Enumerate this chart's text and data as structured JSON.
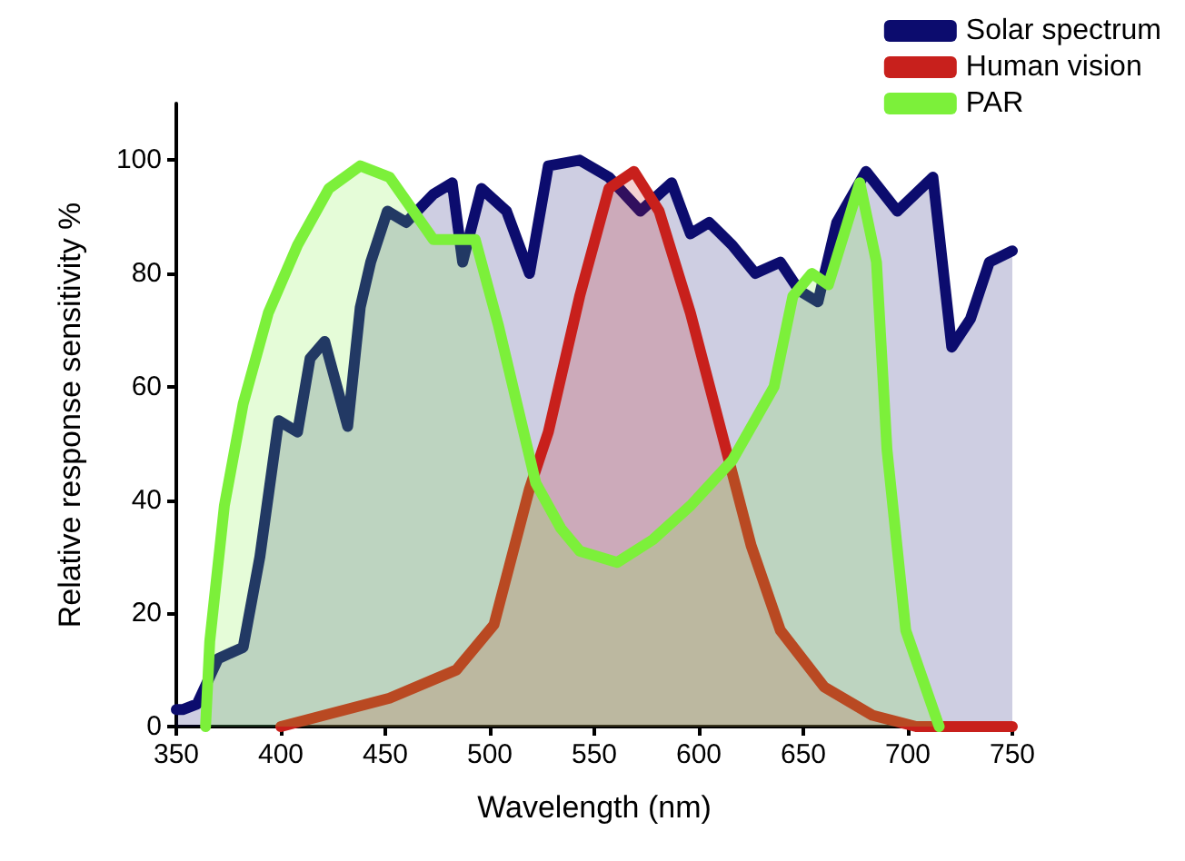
{
  "chart_data": {
    "type": "area",
    "xlabel": "Wavelength (nm)",
    "ylabel": "Relative response sensitivity %",
    "xlim": [
      350,
      750
    ],
    "xticks": [
      350,
      400,
      450,
      500,
      550,
      600,
      650,
      700,
      750
    ],
    "ylim": [
      0,
      110
    ],
    "yticks": [
      0,
      20,
      40,
      60,
      80,
      100
    ],
    "grid": false,
    "legend": "top right",
    "marker": "none",
    "series": [
      {
        "name": "Solar spectrum",
        "color": "#0c0c6e",
        "x": [
          350,
          353,
          360,
          370,
          382,
          390,
          399,
          408,
          414,
          421,
          432,
          438,
          443,
          451,
          460,
          473,
          482,
          487,
          496,
          508,
          519,
          528,
          543,
          557,
          572,
          587,
          596,
          605,
          616,
          627,
          639,
          648,
          657,
          666,
          680,
          695,
          712,
          721,
          730,
          739,
          750
        ],
        "values": [
          3,
          3,
          4,
          12,
          14,
          30,
          54,
          52,
          65,
          68,
          53,
          74,
          82,
          91,
          89,
          94,
          96,
          82,
          95,
          91,
          80,
          99,
          100,
          97,
          91,
          96,
          87,
          89,
          85,
          80,
          82,
          77,
          75,
          89,
          98,
          91,
          97,
          67,
          72,
          82,
          84
        ]
      },
      {
        "name": "Human vision",
        "color": "#c8201c",
        "x": [
          400,
          452,
          484,
          502,
          519,
          528,
          543,
          557,
          569,
          581,
          596,
          613,
          625,
          639,
          660,
          683,
          704,
          750
        ],
        "values": [
          0,
          5,
          10,
          18,
          42,
          52,
          76,
          95,
          98,
          91,
          73,
          49,
          32,
          17,
          7,
          2,
          0,
          0
        ]
      },
      {
        "name": "PAR",
        "color": "#7cf03a",
        "x": [
          364,
          366,
          373,
          382,
          394,
          408,
          423,
          438,
          452,
          473,
          493,
          504,
          513,
          522,
          534,
          543,
          561,
          578,
          596,
          616,
          636,
          645,
          654,
          662,
          677,
          685,
          690,
          699,
          715
        ],
        "values": [
          0,
          15,
          39,
          57,
          73,
          85,
          95,
          99,
          97,
          86,
          86,
          71,
          57,
          43,
          35,
          31,
          29,
          33,
          39,
          47,
          60,
          76,
          80,
          78,
          96,
          82,
          49,
          17,
          0
        ]
      }
    ]
  }
}
